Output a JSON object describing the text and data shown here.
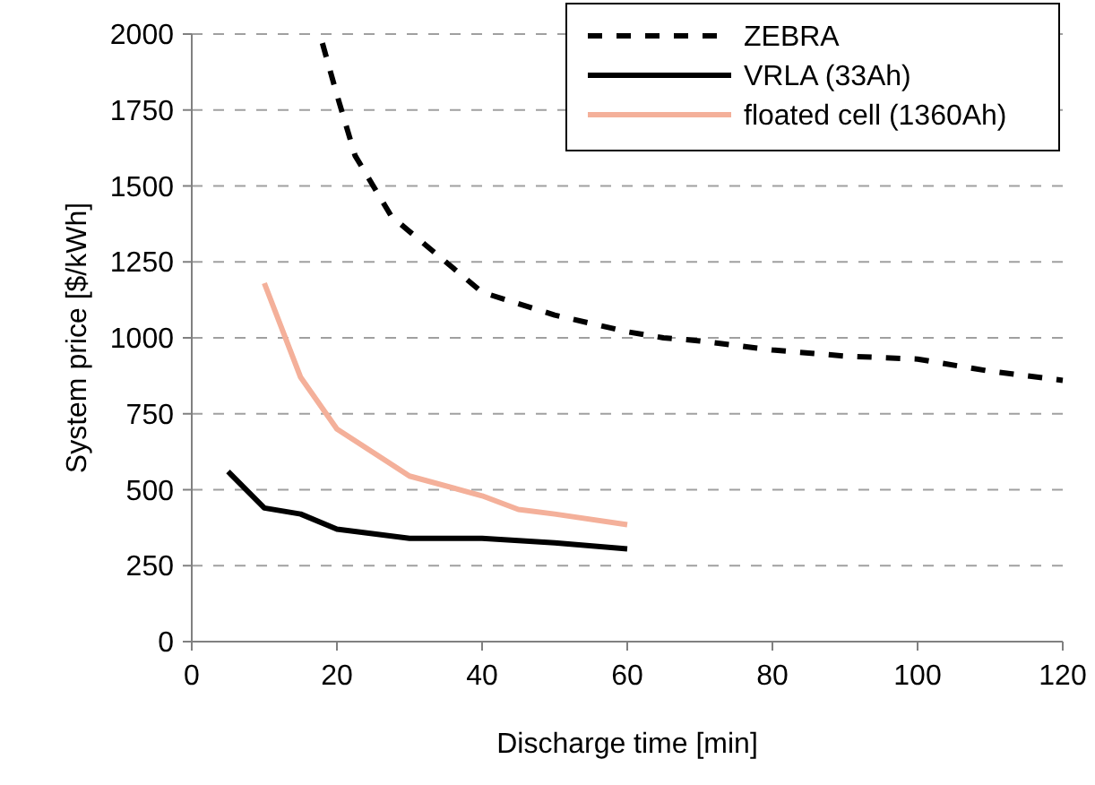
{
  "chart_data": {
    "type": "line",
    "xlabel": "Discharge time [min]",
    "ylabel": "System price [$/kWh]",
    "xlim": [
      0,
      120
    ],
    "xticks": [
      0,
      20,
      40,
      60,
      80,
      100,
      120
    ],
    "ylim": [
      0,
      2000
    ],
    "yticks": [
      0,
      250,
      500,
      750,
      1000,
      1250,
      1500,
      1750,
      2000
    ],
    "grid": "y",
    "legend": "top right",
    "marker": "none",
    "series": [
      {
        "name": "ZEBRA",
        "color": "#000000",
        "line_style": "dashed",
        "x": [
          18,
          20,
          22.5,
          25,
          27.5,
          30,
          35,
          40,
          50,
          60,
          65,
          70,
          80,
          90,
          100,
          110,
          120
        ],
        "values": [
          1970,
          1800,
          1600,
          1500,
          1400,
          1350,
          1250,
          1150,
          1075,
          1020,
          1000,
          990,
          960,
          940,
          930,
          890,
          860
        ]
      },
      {
        "name": "VRLA (33Ah)",
        "color": "#000000",
        "line_style": "solid",
        "x": [
          5,
          10,
          15,
          20,
          30,
          40,
          50,
          60
        ],
        "values": [
          560,
          440,
          420,
          370,
          340,
          340,
          325,
          305
        ]
      },
      {
        "name": "floated cell (1360Ah)",
        "color": "#f4b09a",
        "line_style": "solid",
        "x": [
          10,
          15,
          20,
          30,
          40,
          45,
          50,
          60
        ],
        "values": [
          1180,
          870,
          700,
          545,
          480,
          435,
          420,
          385
        ]
      }
    ]
  }
}
